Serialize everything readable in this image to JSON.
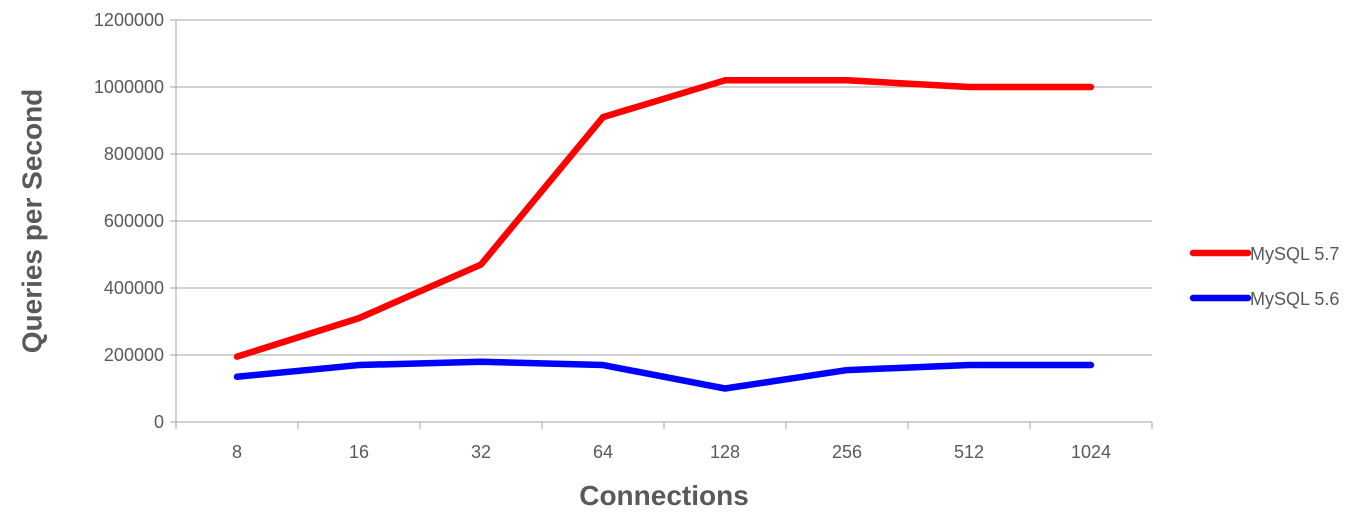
{
  "chart_data": {
    "type": "line",
    "title": "",
    "xlabel": "Connections",
    "ylabel": "Queries per Second",
    "categories": [
      "8",
      "16",
      "32",
      "64",
      "128",
      "256",
      "512",
      "1024"
    ],
    "ylim": [
      0,
      1200000
    ],
    "yticks": [
      0,
      200000,
      400000,
      600000,
      800000,
      1000000,
      1200000
    ],
    "grid": true,
    "legend_position": "right",
    "series": [
      {
        "name": "MySQL 5.7",
        "color": "#ff0000",
        "values": [
          195000,
          310000,
          470000,
          910000,
          1020000,
          1020000,
          1000000,
          1000000
        ]
      },
      {
        "name": "MySQL 5.6",
        "color": "#0000ff",
        "values": [
          135000,
          170000,
          180000,
          170000,
          100000,
          155000,
          170000,
          170000
        ]
      }
    ]
  }
}
